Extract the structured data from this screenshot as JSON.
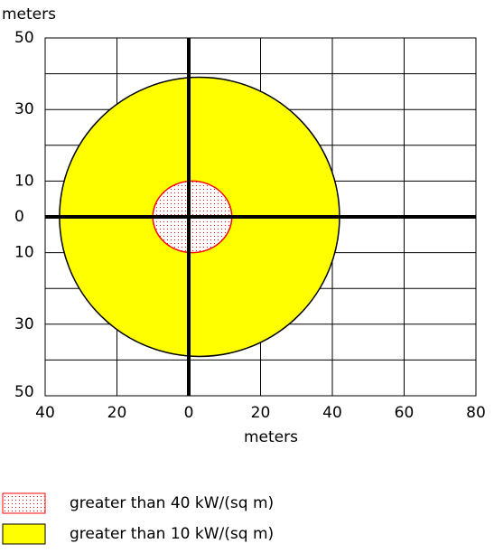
{
  "chart_data": {
    "type": "threat-zone",
    "y_label": "meters",
    "x_label": "meters",
    "xlim": [
      -40,
      80
    ],
    "ylim": [
      -50,
      50
    ],
    "xticks": [
      {
        "value": -40,
        "label": "40"
      },
      {
        "value": -20,
        "label": "20"
      },
      0,
      20,
      40,
      60,
      80
    ],
    "yticks": [
      50,
      30,
      10,
      0,
      {
        "value": -10,
        "label": "10"
      },
      {
        "value": -30,
        "label": "30"
      },
      {
        "value": -50,
        "label": "50"
      }
    ],
    "ygrid": [
      50,
      40,
      30,
      20,
      10,
      0,
      -10,
      -20,
      -30,
      -40,
      -50
    ],
    "grid": true,
    "zones": [
      {
        "name": "greater than 40 kW/(sq m)",
        "color": "#ff0000",
        "edge": "#ff0000",
        "fill": "dotted",
        "x": [
          -10,
          12
        ],
        "y": [
          -10,
          10
        ]
      },
      {
        "name": "greater than 10 kW/(sq m)",
        "color": "#ffff00",
        "edge": "#000000",
        "fill": "solid",
        "x": [
          -36,
          42
        ],
        "y": [
          -39,
          39
        ]
      }
    ]
  }
}
